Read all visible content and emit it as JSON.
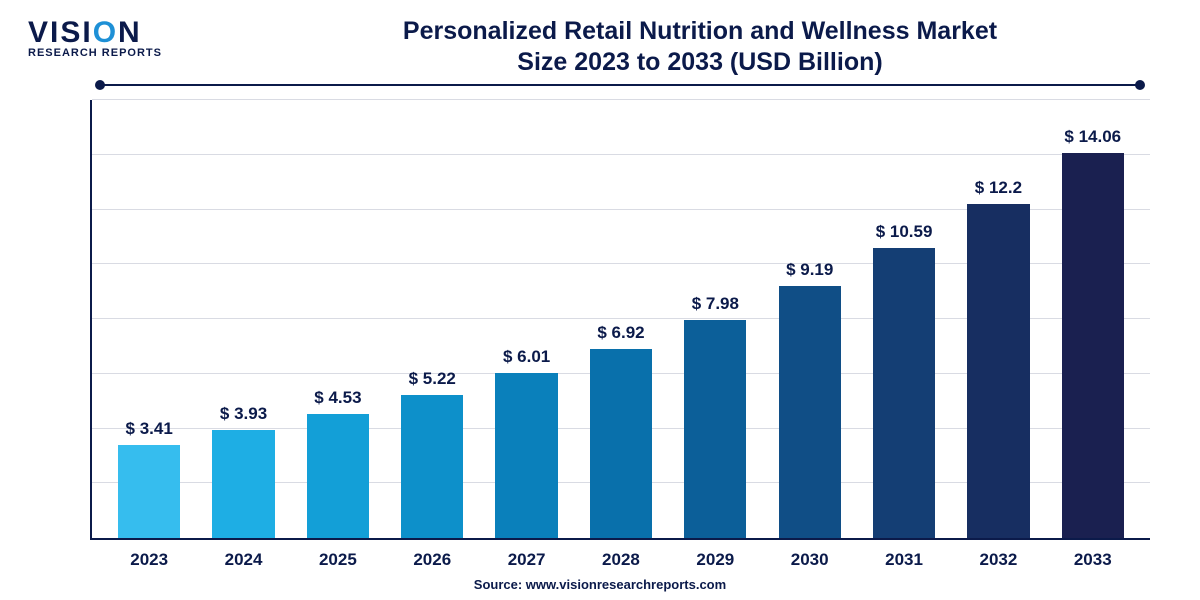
{
  "logo": {
    "line1_pre": "VISI",
    "line1_accent": "O",
    "line1_post": "N",
    "line2": "RESEARCH REPORTS"
  },
  "title": {
    "line1": "Personalized Retail Nutrition and Wellness Market",
    "line2": "Size 2023 to 2033 (USD Billion)",
    "fontsize": 25,
    "color": "#0b1a4a"
  },
  "chart": {
    "type": "bar",
    "categories": [
      "2023",
      "2024",
      "2025",
      "2026",
      "2027",
      "2028",
      "2029",
      "2030",
      "2031",
      "2032",
      "2033"
    ],
    "values": [
      3.41,
      3.93,
      4.53,
      5.22,
      6.01,
      6.92,
      7.98,
      9.19,
      10.59,
      12.2,
      14.06
    ],
    "value_labels": [
      "$ 3.41",
      "$ 3.93",
      "$ 4.53",
      "$ 5.22",
      "$ 6.01",
      "$ 6.92",
      "$ 7.98",
      "$ 9.19",
      "$ 10.59",
      "$ 12.2",
      "$ 14.06"
    ],
    "bar_colors": [
      "#36bdee",
      "#1eaee4",
      "#139fd7",
      "#0d90ca",
      "#0a80bb",
      "#0970ab",
      "#0c5f99",
      "#104e86",
      "#143e74",
      "#172e61",
      "#1a2050"
    ],
    "ylim": [
      0,
      16
    ],
    "grid_lines": 8,
    "grid_color": "#d9dbe3",
    "axis_color": "#0b1a4a",
    "background_color": "#ffffff",
    "bar_width_pct": 66,
    "value_fontsize": 17,
    "xlabel_fontsize": 17,
    "label_color": "#0b1a4a"
  },
  "source": {
    "text": "Source: www.visionresearchreports.com",
    "fontsize": 13,
    "color": "#0b1a4a"
  }
}
